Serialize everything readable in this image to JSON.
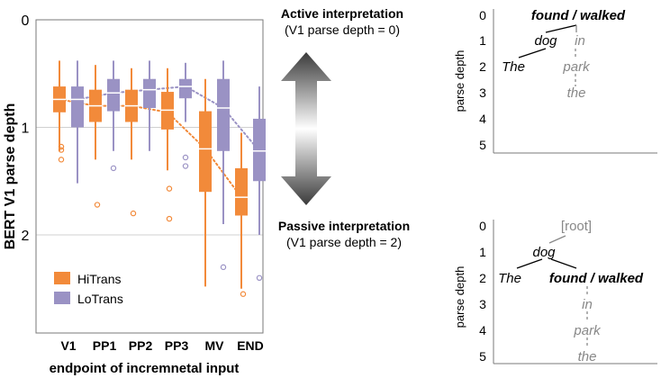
{
  "colors": {
    "hitrans": "#f28a3a",
    "lotrans": "#9a92c4",
    "grid": "#d0d0d0",
    "tree_gray": "#888888",
    "axis": "#7a7a7a"
  },
  "chart_data": {
    "type": "boxplot",
    "ylabel": "BERT V1 parse depth",
    "xlabel": "endpoint of incremnetal input",
    "y_ticks": [
      "0",
      "1",
      "2"
    ],
    "ylim": [
      0,
      2.6
    ],
    "y_inverted": true,
    "categories": [
      "V1",
      "PP1",
      "PP2",
      "PP3",
      "MV",
      "END"
    ],
    "legend": [
      {
        "name": "HiTrans",
        "key": "hitrans"
      },
      {
        "name": "LoTrans",
        "key": "lotrans"
      }
    ],
    "series": [
      {
        "name": "HiTrans",
        "key": "hitrans",
        "boxes": [
          {
            "lw": 0.38,
            "q1": 0.62,
            "median": 0.74,
            "q3": 0.86,
            "uw": 1.22,
            "outliers": [
              1.18,
              1.21,
              1.3
            ]
          },
          {
            "lw": 0.42,
            "q1": 0.65,
            "median": 0.8,
            "q3": 0.95,
            "uw": 1.3,
            "outliers": [
              1.72
            ]
          },
          {
            "lw": 0.45,
            "q1": 0.65,
            "median": 0.8,
            "q3": 0.95,
            "uw": 1.3,
            "outliers": [
              1.8
            ]
          },
          {
            "lw": 0.45,
            "q1": 0.67,
            "median": 0.84,
            "q3": 1.02,
            "uw": 1.4,
            "outliers": [
              1.57,
              1.85
            ]
          },
          {
            "lw": 0.55,
            "q1": 0.85,
            "median": 1.2,
            "q3": 1.6,
            "uw": 2.48,
            "outliers": []
          },
          {
            "lw": 1.05,
            "q1": 1.38,
            "median": 1.65,
            "q3": 1.82,
            "uw": 2.5,
            "outliers": [
              2.55
            ]
          }
        ],
        "trend": [
          0.74,
          0.8,
          0.8,
          0.86,
          1.2,
          1.65
        ]
      },
      {
        "name": "LoTrans",
        "key": "lotrans",
        "boxes": [
          {
            "lw": 0.38,
            "q1": 0.62,
            "median": 0.74,
            "q3": 1.0,
            "uw": 1.52,
            "outliers": []
          },
          {
            "lw": 0.38,
            "q1": 0.55,
            "median": 0.68,
            "q3": 0.85,
            "uw": 1.22,
            "outliers": [
              1.38
            ]
          },
          {
            "lw": 0.38,
            "q1": 0.55,
            "median": 0.65,
            "q3": 0.82,
            "uw": 1.22,
            "outliers": []
          },
          {
            "lw": 0.4,
            "q1": 0.55,
            "median": 0.62,
            "q3": 0.73,
            "uw": 0.95,
            "outliers": [
              1.28,
              1.36
            ]
          },
          {
            "lw": 0.38,
            "q1": 0.55,
            "median": 0.82,
            "q3": 1.22,
            "uw": 1.9,
            "outliers": [
              2.3
            ]
          },
          {
            "lw": 0.62,
            "q1": 0.92,
            "median": 1.22,
            "q3": 1.5,
            "uw": 2.0,
            "outliers": [
              2.4
            ]
          }
        ],
        "trend": [
          0.74,
          0.68,
          0.65,
          0.62,
          0.82,
          1.22
        ]
      }
    ]
  },
  "interpretation": {
    "active": "Active interpretation",
    "active_sub": "(V1 parse depth = 0)",
    "passive": "Passive interpretation",
    "passive_sub": "(V1 parse depth = 2)"
  },
  "trees": {
    "ylabel": "parse depth",
    "ticks": [
      "0",
      "1",
      "2",
      "3",
      "4",
      "5"
    ],
    "active": {
      "verb": "found / walked",
      "dog": "dog",
      "the1": "The",
      "in": "in",
      "park": "park",
      "the2": "the"
    },
    "passive": {
      "root": "[root]",
      "dog": "dog",
      "the1": "The",
      "verb": "found / walked",
      "in": "in",
      "park": "park",
      "the2": "the"
    }
  }
}
